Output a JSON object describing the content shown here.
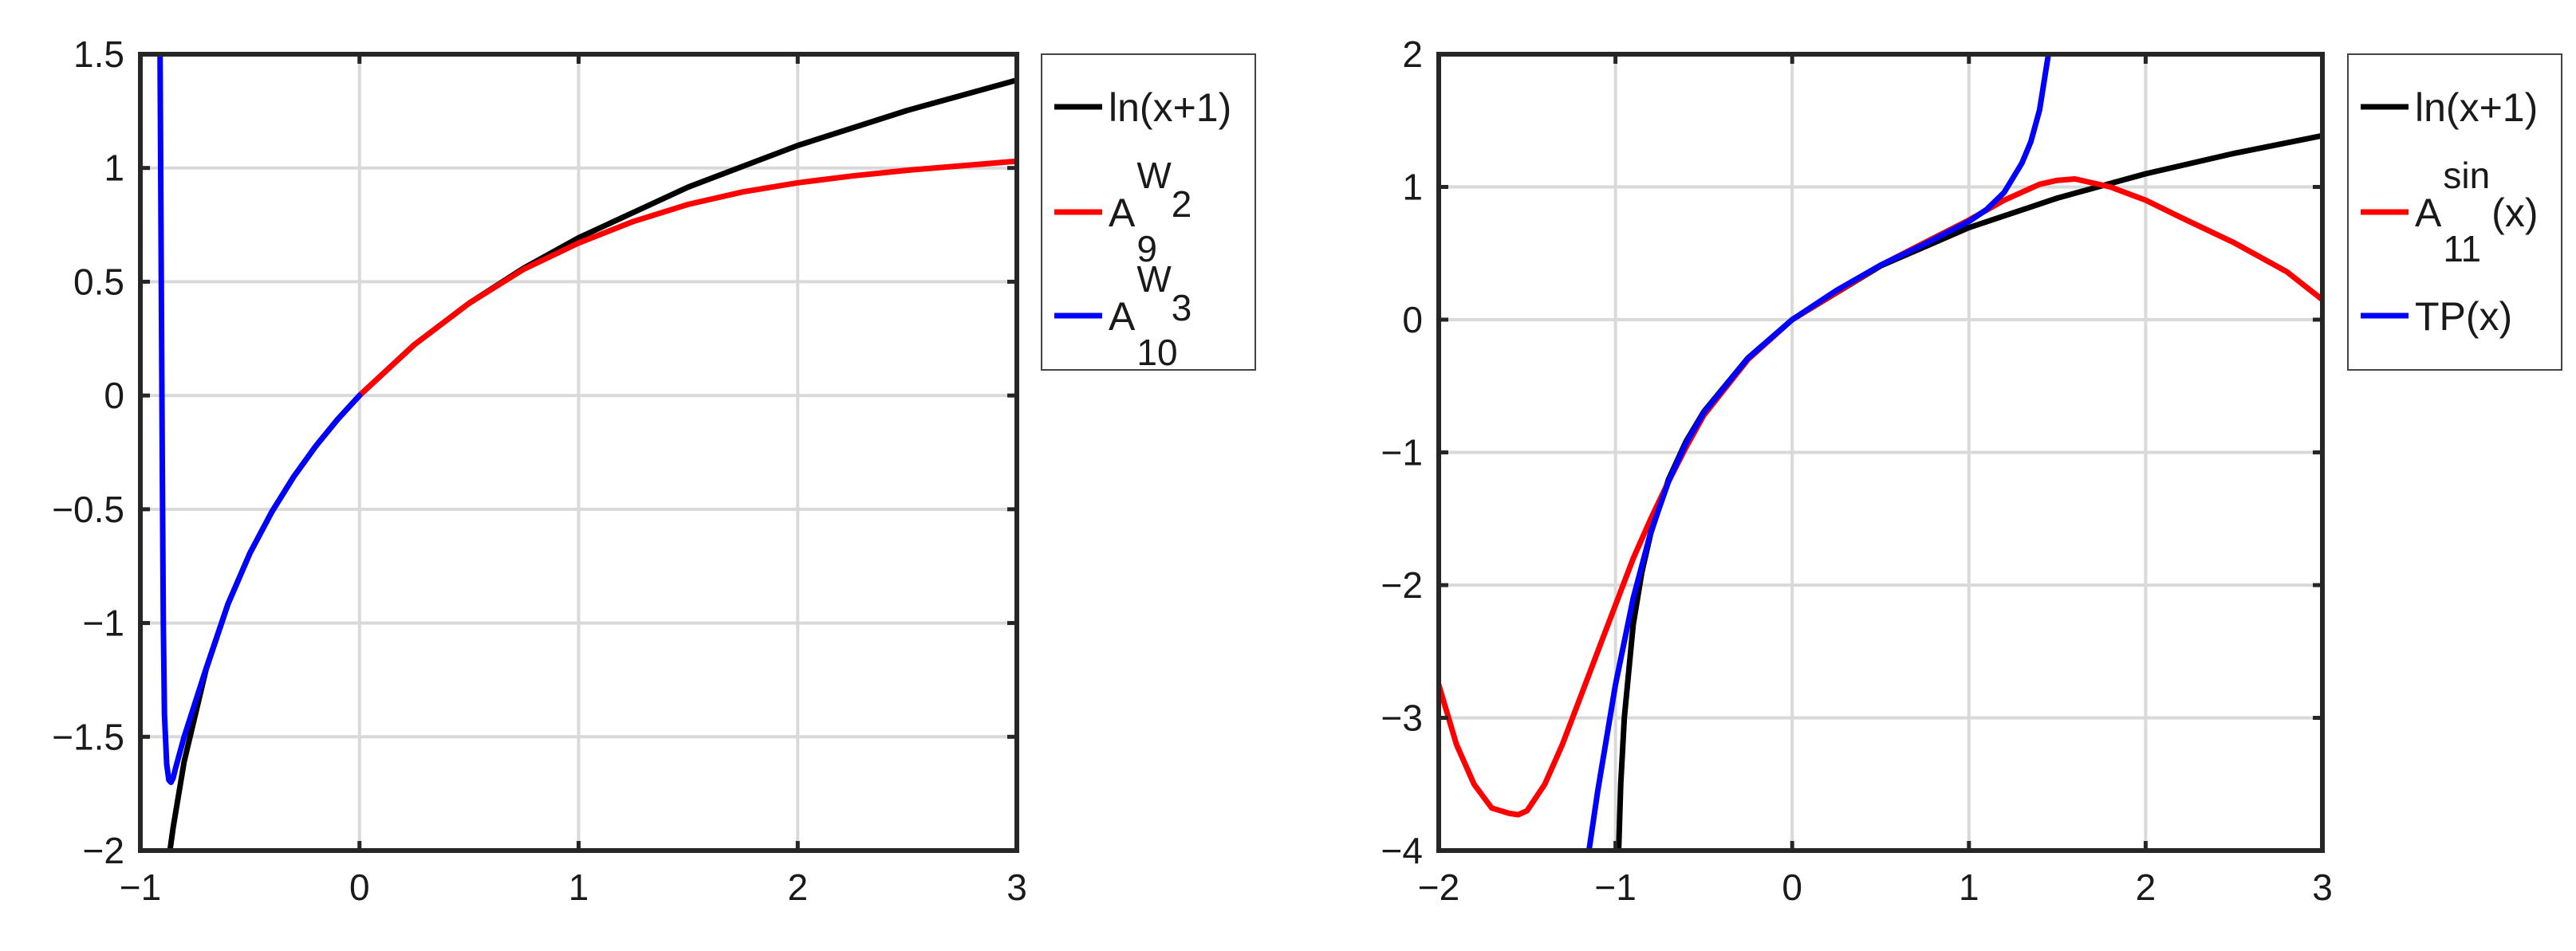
{
  "colors": {
    "ln": "#000000",
    "red": "#ff0000",
    "blue": "#0000ff",
    "grid": "#d9d9d9",
    "axes": "#262626"
  },
  "chart_data": [
    {
      "type": "line",
      "title": "",
      "xlabel": "",
      "ylabel": "",
      "xlim": [
        -1,
        3
      ],
      "ylim": [
        -2,
        1.5
      ],
      "grid": true,
      "legend_position": "outside-right-top",
      "xticks": [
        {
          "value": -1,
          "label": "−1"
        },
        {
          "value": 0,
          "label": "0"
        },
        {
          "value": 1,
          "label": "1"
        },
        {
          "value": 2,
          "label": "2"
        },
        {
          "value": 3,
          "label": "3"
        }
      ],
      "yticks": [
        {
          "value": 1.5,
          "label": "1.5"
        },
        {
          "value": 1,
          "label": "1"
        },
        {
          "value": 0.5,
          "label": "0.5"
        },
        {
          "value": 0,
          "label": "0"
        },
        {
          "value": -0.5,
          "label": "−0.5"
        },
        {
          "value": -1,
          "label": "−1"
        },
        {
          "value": -1.5,
          "label": "−1.5"
        },
        {
          "value": -2,
          "label": "−2"
        }
      ],
      "series": [
        {
          "name": "ln(x+1)",
          "legend": {
            "base": "ln(x+1)",
            "sup": "",
            "sub": "",
            "sup2": "",
            "sub2": "",
            "suffix": ""
          },
          "color": "ln",
          "x": [
            -0.865,
            -0.85,
            -0.8,
            -0.7,
            -0.6,
            -0.5,
            -0.4,
            -0.3,
            -0.2,
            -0.1,
            0,
            0.25,
            0.5,
            0.75,
            1,
            1.5,
            2,
            2.5,
            3
          ],
          "y": [
            -2.0,
            -1.897,
            -1.609,
            -1.204,
            -0.916,
            -0.693,
            -0.511,
            -0.357,
            -0.223,
            -0.105,
            0,
            0.223,
            0.405,
            0.56,
            0.693,
            0.916,
            1.099,
            1.253,
            1.386
          ]
        },
        {
          "name": "A_9^{W_2}",
          "legend": {
            "base": "A",
            "sup": "W",
            "sub": "9",
            "sup2": "2",
            "sub2": "",
            "suffix": ""
          },
          "color": "red",
          "x": [
            0,
            0.25,
            0.5,
            0.75,
            1,
            1.25,
            1.5,
            1.75,
            2,
            2.25,
            2.5,
            2.75,
            3
          ],
          "y": [
            0,
            0.223,
            0.405,
            0.555,
            0.67,
            0.765,
            0.84,
            0.895,
            0.935,
            0.965,
            0.99,
            1.01,
            1.03
          ]
        },
        {
          "name": "A_10^{W_3}",
          "legend": {
            "base": "A",
            "sup": "W",
            "sub": "10",
            "sup2": "3",
            "sub2": "",
            "suffix": ""
          },
          "color": "blue",
          "x": [
            -0.91,
            -0.905,
            -0.9,
            -0.895,
            -0.89,
            -0.88,
            -0.87,
            -0.86,
            -0.85,
            -0.84,
            -0.8,
            -0.7,
            -0.6,
            -0.5,
            -0.4,
            -0.3,
            -0.2,
            -0.1,
            0
          ],
          "y": [
            1.5,
            0.6,
            -0.3,
            -1.0,
            -1.4,
            -1.62,
            -1.69,
            -1.7,
            -1.68,
            -1.64,
            -1.5,
            -1.2,
            -0.916,
            -0.693,
            -0.511,
            -0.357,
            -0.223,
            -0.105,
            0
          ]
        }
      ]
    },
    {
      "type": "line",
      "title": "",
      "xlabel": "",
      "ylabel": "",
      "xlim": [
        -2,
        3
      ],
      "ylim": [
        -4,
        2
      ],
      "grid": true,
      "legend_position": "outside-right-top",
      "xticks": [
        {
          "value": -2,
          "label": "−2"
        },
        {
          "value": -1,
          "label": "−1"
        },
        {
          "value": 0,
          "label": "0"
        },
        {
          "value": 1,
          "label": "1"
        },
        {
          "value": 2,
          "label": "2"
        },
        {
          "value": 3,
          "label": "3"
        }
      ],
      "yticks": [
        {
          "value": 2,
          "label": "2"
        },
        {
          "value": 1,
          "label": "1"
        },
        {
          "value": 0,
          "label": "0"
        },
        {
          "value": -1,
          "label": "−1"
        },
        {
          "value": -2,
          "label": "−2"
        },
        {
          "value": -3,
          "label": "−3"
        },
        {
          "value": -4,
          "label": "−4"
        }
      ],
      "series": [
        {
          "name": "ln(x+1)",
          "legend": {
            "base": "ln(x+1)",
            "sup": "",
            "sub": "",
            "sup2": "",
            "sub2": "",
            "suffix": ""
          },
          "color": "ln",
          "x": [
            -0.982,
            -0.97,
            -0.95,
            -0.9,
            -0.85,
            -0.8,
            -0.7,
            -0.6,
            -0.5,
            -0.25,
            0,
            0.5,
            1,
            1.5,
            2,
            2.5,
            3
          ],
          "y": [
            -4.0,
            -3.5,
            -3.0,
            -2.3,
            -1.9,
            -1.609,
            -1.204,
            -0.916,
            -0.693,
            -0.288,
            0,
            0.405,
            0.693,
            0.916,
            1.099,
            1.253,
            1.386
          ]
        },
        {
          "name": "A_11^{sin}(x)",
          "legend": {
            "base": "A",
            "sup": "sin",
            "sub": "11",
            "sup2": "",
            "sub2": "",
            "suffix": "(x)"
          },
          "color": "red",
          "x": [
            -2,
            -1.9,
            -1.8,
            -1.7,
            -1.6,
            -1.55,
            -1.5,
            -1.4,
            -1.3,
            -1.2,
            -1.1,
            -1.0,
            -0.9,
            -0.8,
            -0.7,
            -0.6,
            -0.5,
            -0.25,
            0,
            0.5,
            1,
            1.2,
            1.4,
            1.5,
            1.6,
            1.8,
            2,
            2.2,
            2.5,
            2.8,
            3
          ],
          "y": [
            -2.75,
            -3.2,
            -3.5,
            -3.68,
            -3.72,
            -3.73,
            -3.7,
            -3.5,
            -3.2,
            -2.85,
            -2.5,
            -2.15,
            -1.8,
            -1.5,
            -1.22,
            -0.96,
            -0.72,
            -0.3,
            0,
            0.41,
            0.75,
            0.9,
            1.02,
            1.05,
            1.06,
            1.0,
            0.9,
            0.77,
            0.58,
            0.36,
            0.15
          ]
        },
        {
          "name": "TP(x)",
          "legend": {
            "base": "TP(x)",
            "sup": "",
            "sub": "",
            "sup2": "",
            "sub2": "",
            "suffix": ""
          },
          "color": "blue",
          "x": [
            -1.15,
            -1.1,
            -1.0,
            -0.9,
            -0.8,
            -0.7,
            -0.6,
            -0.5,
            -0.25,
            0,
            0.25,
            0.5,
            0.75,
            1,
            1.1,
            1.2,
            1.3,
            1.35,
            1.4,
            1.45
          ],
          "y": [
            -4.0,
            -3.55,
            -2.75,
            -2.1,
            -1.6,
            -1.22,
            -0.93,
            -0.7,
            -0.29,
            0,
            0.22,
            0.41,
            0.57,
            0.74,
            0.83,
            0.96,
            1.18,
            1.34,
            1.58,
            2.0
          ]
        }
      ]
    }
  ]
}
